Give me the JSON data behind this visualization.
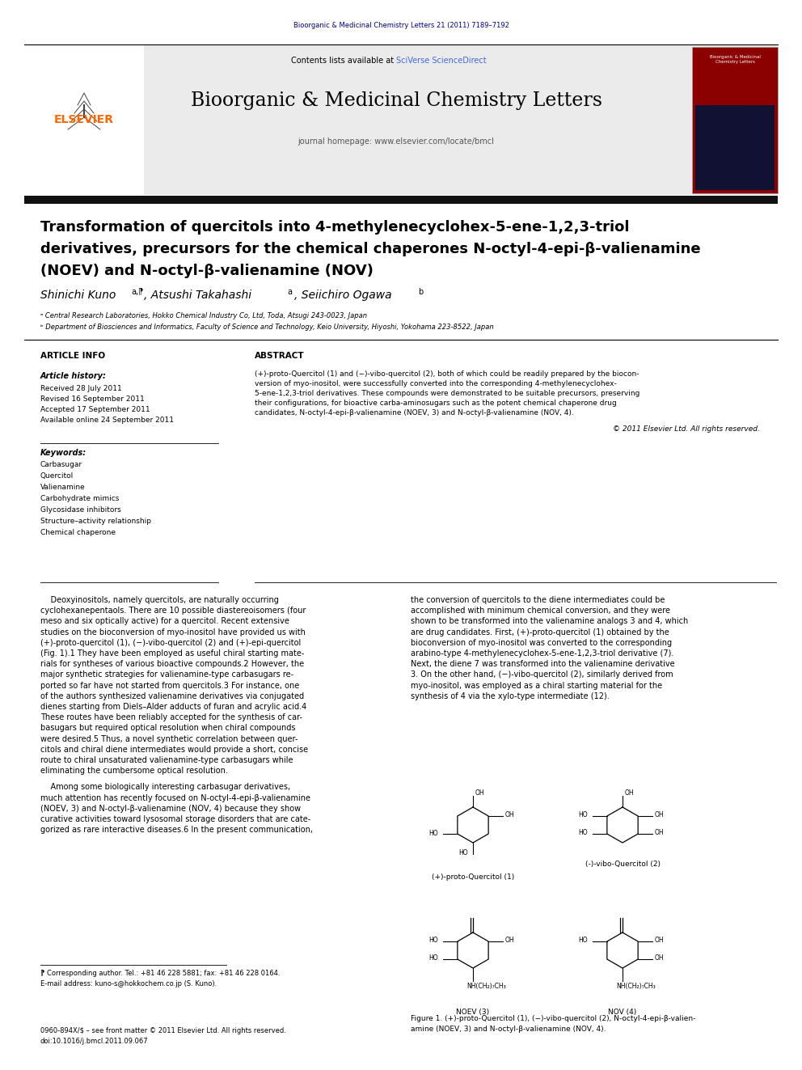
{
  "page_width": 9.92,
  "page_height": 13.23,
  "dpi": 100,
  "bg": "#ffffff",
  "journal_ref": "Bioorganic & Medicinal Chemistry Letters 21 (2011) 7189–7192",
  "journal_ref_color": "#00008B",
  "header_bg": "#ebebeb",
  "journal_name": "Bioorganic & Medicinal Chemistry Letters",
  "homepage_text": "journal homepage: www.elsevier.com/locate/bmcl",
  "contents_pre": "Contents lists available at ",
  "sciverse": "SciVerse ScienceDirect",
  "sciverse_color": "#4169E1",
  "elsevier_color": "#FF6600",
  "title1": "Transformation of quercitols into 4-methylenecyclohex-5-ene-1,2,3-triol",
  "title2": "derivatives, precursors for the chemical chaperones N-octyl-4-epi-β-valienamine",
  "title3": "(NOEV) and N-octyl-β-valienamine (NOV)",
  "art_info_hdr": "ARTICLE INFO",
  "abstract_hdr": "ABSTRACT",
  "art_history_lbl": "Article history:",
  "received": "Received 28 July 2011",
  "revised": "Revised 16 September 2011",
  "accepted": "Accepted 17 September 2011",
  "available": "Available online 24 September 2011",
  "keywords_lbl": "Keywords:",
  "keywords": [
    "Carbasugar",
    "Quercitol",
    "Valienamine",
    "Carbohydrate mimics",
    "Glycosidase inhibitors",
    "Structure–activity relationship",
    "Chemical chaperone"
  ],
  "abstract_lines": [
    "(+)-proto-Quercitol (1) and (−)-vibo-quercitol (2), both of which could be readily prepared by the biocon-",
    "version of myo-inositol, were successfully converted into the corresponding 4-methylenecyclohex-",
    "5-ene-1,2,3-triol derivatives. These compounds were demonstrated to be suitable precursors, preserving",
    "their configurations, for bioactive carba-aminosugars such as the potent chemical chaperone drug",
    "candidates, N-octyl-4-epi-β-valienamine (NOEV, 3) and N-octyl-β-valienamine (NOV, 4)."
  ],
  "copyright": "© 2011 Elsevier Ltd. All rights reserved.",
  "body1": [
    "    Deoxyinositols, namely quercitols, are naturally occurring",
    "cyclohexanepentaols. There are 10 possible diastereoisomers (four",
    "meso and six optically active) for a quercitol. Recent extensive",
    "studies on the bioconversion of myo-inositol have provided us with",
    "(+)-proto-quercitol (1), (−)-vibo-quercitol (2) and (+)-epi-quercitol",
    "(Fig. 1).1 They have been employed as useful chiral starting mate-",
    "rials for syntheses of various bioactive compounds.2 However, the",
    "major synthetic strategies for valienamine-type carbasugars re-",
    "ported so far have not started from quercitols.3 For instance, one",
    "of the authors synthesized valienamine derivatives via conjugated",
    "dienes starting from Diels–Alder adducts of furan and acrylic acid.4",
    "These routes have been reliably accepted for the synthesis of car-",
    "basugars but required optical resolution when chiral compounds",
    "were desired.5 Thus, a novel synthetic correlation between quer-",
    "citols and chiral diene intermediates would provide a short, concise",
    "route to chiral unsaturated valienamine-type carbasugars while",
    "eliminating the cumbersome optical resolution."
  ],
  "body1b": [
    "    Among some biologically interesting carbasugar derivatives,",
    "much attention has recently focused on N-octyl-4-epi-β-valienamine",
    "(NOEV, 3) and N-octyl-β-valienamine (NOV, 4) because they show",
    "curative activities toward lysosomal storage disorders that are cate-",
    "gorized as rare interactive diseases.6 In the present communication,"
  ],
  "body2": [
    "the conversion of quercitols to the diene intermediates could be",
    "accomplished with minimum chemical conversion, and they were",
    "shown to be transformed into the valienamine analogs 3 and 4, which",
    "are drug candidates. First, (+)-proto-quercitol (1) obtained by the",
    "bioconversion of myo-inositol was converted to the corresponding",
    "arabino-type 4-methylenecyclohex-5-ene-1,2,3-triol derivative (7).",
    "Next, the diene 7 was transformed into the valienamine derivative",
    "3. On the other hand, (−)-vibo-quercitol (2), similarly derived from",
    "myo-inositol, was employed as a chiral starting material for the",
    "synthesis of 4 via the xylo-type intermediate (12)."
  ],
  "fig_caption": "Figure 1. (+)-proto-Quercitol (1), (−)-vibo-quercitol (2), N-octyl-4-epi-β-valien-",
  "fig_caption2": "amine (NOEV, 3) and N-octyl-β-valienamine (NOV, 4).",
  "fn_star": "⁋ Corresponding author. Tel.: +81 46 228 5881; fax: +81 46 228 0164.",
  "fn_email": "E-mail address: kuno-s@hokkochem.co.jp (S. Kuno).",
  "fn_issn": "0960-894X/$ – see front matter © 2011 Elsevier Ltd. All rights reserved.",
  "fn_doi": "doi:10.1016/j.bmcl.2011.09.067",
  "blue": "#4169E1",
  "black": "#000000",
  "gray": "#888888",
  "darkred": "#8B0000"
}
